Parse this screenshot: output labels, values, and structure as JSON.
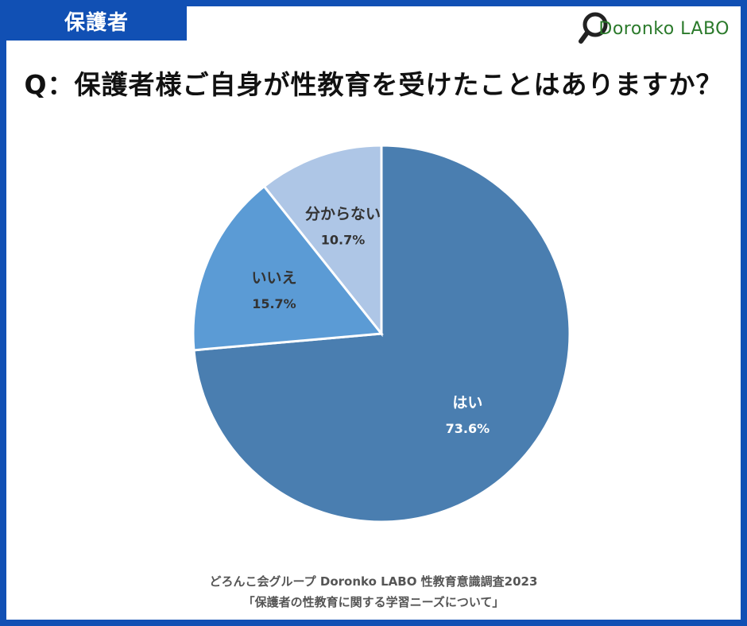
{
  "tag": "保護者",
  "logo": {
    "text": "Doronko LABO",
    "icon": "magnifier-icon",
    "color": "#2b7a2b"
  },
  "question": "Q：保護者様ご自身が性教育を受けたことはありますか？",
  "chart_data": {
    "type": "pie",
    "title": "Q：保護者様ご自身が性教育を受けたことはありますか？",
    "slices": [
      {
        "label": "はい",
        "value": 73.6,
        "display": "73.6%",
        "color": "#4a7eb0",
        "text_color": "#ffffff"
      },
      {
        "label": "いいえ",
        "value": 15.7,
        "display": "15.7%",
        "color": "#5b9bd5",
        "text_color": "#333333"
      },
      {
        "label": "分からない",
        "value": 10.7,
        "display": "10.7%",
        "color": "#aec6e6",
        "text_color": "#333333"
      }
    ],
    "legend": "none"
  },
  "source": {
    "line1": "どろんこ会グループ Doronko LABO 性教育意識調査2023",
    "line2": "「保護者の性教育に関する学習ニーズについて」"
  },
  "colors": {
    "frame": "#1150b4",
    "background": "#ffffff"
  }
}
